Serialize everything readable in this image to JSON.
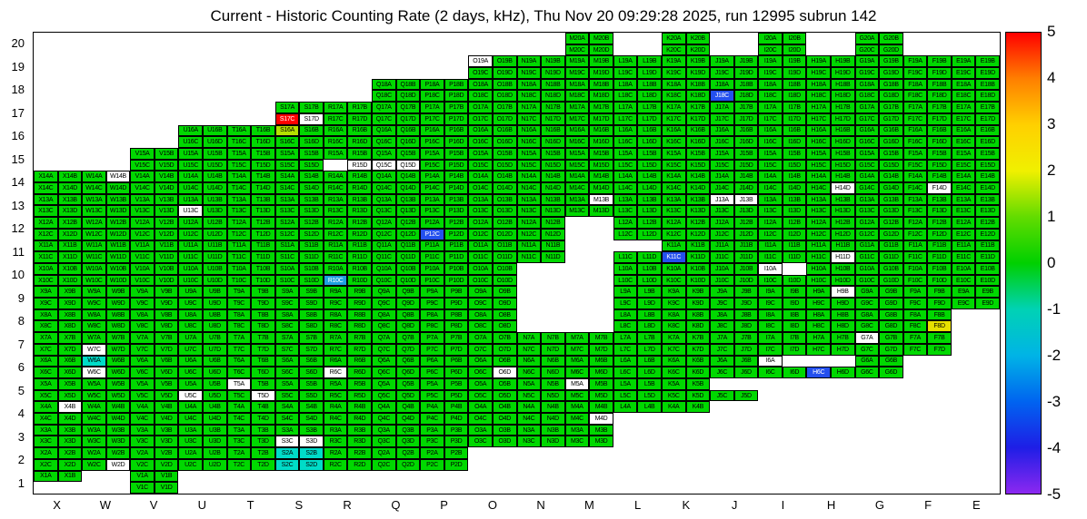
{
  "chart_data": {
    "type": "heatmap",
    "title": "Current - Historic Counting Rate (2 days, kHz), Thu Nov 20 09:29:28 2025, run 12995 subrun 142",
    "x_labels": [
      "X",
      "W",
      "V",
      "U",
      "T",
      "S",
      "R",
      "Q",
      "P",
      "O",
      "N",
      "M",
      "L",
      "K",
      "J",
      "I",
      "H",
      "G",
      "F",
      "E"
    ],
    "y_labels": [
      "20",
      "19",
      "18",
      "17",
      "16",
      "15",
      "14",
      "13",
      "12",
      "11",
      "10",
      "9",
      "8",
      "7",
      "6",
      "5",
      "4",
      "3",
      "2",
      "1"
    ],
    "sub_channels": [
      "A",
      "B",
      "C",
      "D"
    ],
    "value_scale": {
      "min": -5,
      "max": 5,
      "ticks": [
        "5",
        "4",
        "3",
        "2",
        "1",
        "0",
        "-1",
        "-2",
        "-3",
        "-4",
        "-5"
      ]
    },
    "default_color": "green",
    "colors": {
      "green": "#00d800",
      "red": "#ff0000",
      "blue": "#2450ee",
      "lightblue": "#1ea0e0",
      "cyan": "#00dcc8",
      "yellow": "#e6e000",
      "yellowgreen": "#b4e000",
      "white": "#ffffff"
    },
    "light_text_on": [
      "red",
      "blue",
      "lightblue"
    ],
    "approx_values": {
      "green": 0.5,
      "yellowgreen": 2,
      "yellow": 2.5,
      "red": 5,
      "cyan": -1,
      "lightblue": -2,
      "blue": -3,
      "white": null
    },
    "rows": [
      {
        "y": "20",
        "cols": [
          "M",
          "K",
          "I",
          "G"
        ]
      },
      {
        "y": "19",
        "cols": [
          "O",
          "N",
          "M",
          "L",
          "K",
          "J",
          "I",
          "H",
          "G",
          "F",
          "E"
        ]
      },
      {
        "y": "18",
        "cols": [
          "Q",
          "P",
          "O",
          "N",
          "M",
          "L",
          "K",
          "J",
          "I",
          "H",
          "G",
          "F",
          "E"
        ]
      },
      {
        "y": "17",
        "cols": [
          "S",
          "R",
          "Q",
          "P",
          "O",
          "N",
          "M",
          "L",
          "K",
          "J",
          "I",
          "H",
          "G",
          "F",
          "E"
        ]
      },
      {
        "y": "16",
        "cols": [
          "U",
          "T",
          "S",
          "R",
          "Q",
          "P",
          "O",
          "N",
          "M",
          "L",
          "K",
          "J",
          "I",
          "H",
          "G",
          "F",
          "E"
        ]
      },
      {
        "y": "15",
        "cols": [
          "V",
          "U",
          "T",
          "S",
          "R",
          "Q",
          "P",
          "O",
          "N",
          "M",
          "L",
          "K",
          "J",
          "I",
          "H",
          "G",
          "F",
          "E"
        ]
      },
      {
        "y": "14",
        "cols": [
          "X",
          "W",
          "V",
          "U",
          "T",
          "S",
          "R",
          "Q",
          "P",
          "O",
          "N",
          "M",
          "L",
          "K",
          "J",
          "I",
          "H",
          "G",
          "F",
          "E"
        ]
      },
      {
        "y": "13",
        "cols": [
          "X",
          "W",
          "V",
          "U",
          "T",
          "S",
          "R",
          "Q",
          "P",
          "O",
          "N",
          "M",
          "L",
          "K",
          "J",
          "I",
          "H",
          "G",
          "F",
          "E"
        ]
      },
      {
        "y": "12",
        "cols": [
          "X",
          "W",
          "V",
          "U",
          "T",
          "S",
          "R",
          "Q",
          "P",
          "O",
          "N",
          "L",
          "K",
          "J",
          "I",
          "H",
          "G",
          "F",
          "E"
        ]
      },
      {
        "y": "11",
        "cols": [
          "X",
          "W",
          "V",
          "U",
          "T",
          "S",
          "R",
          "Q",
          "P",
          "O",
          "N",
          "L",
          "K",
          "J",
          "I",
          "H",
          "G",
          "F",
          "E"
        ]
      },
      {
        "y": "10",
        "cols": [
          "X",
          "W",
          "V",
          "U",
          "T",
          "S",
          "R",
          "Q",
          "P",
          "O",
          "L",
          "K",
          "J",
          "I",
          "H",
          "G",
          "F",
          "E"
        ]
      },
      {
        "y": "9",
        "cols": [
          "X",
          "W",
          "V",
          "U",
          "T",
          "S",
          "R",
          "Q",
          "P",
          "O",
          "L",
          "K",
          "J",
          "I",
          "H",
          "G",
          "F",
          "E"
        ]
      },
      {
        "y": "8",
        "cols": [
          "X",
          "W",
          "V",
          "U",
          "T",
          "S",
          "R",
          "Q",
          "P",
          "O",
          "L",
          "K",
          "J",
          "I",
          "H",
          "G",
          "F"
        ]
      },
      {
        "y": "7",
        "cols": [
          "X",
          "W",
          "V",
          "U",
          "T",
          "S",
          "R",
          "Q",
          "P",
          "O",
          "N",
          "M",
          "L",
          "K",
          "J",
          "I",
          "H",
          "G",
          "F"
        ]
      },
      {
        "y": "6",
        "cols": [
          "X",
          "W",
          "V",
          "U",
          "T",
          "S",
          "R",
          "Q",
          "P",
          "O",
          "N",
          "M",
          "L",
          "K",
          "J",
          "I",
          "H",
          "G"
        ]
      },
      {
        "y": "5",
        "cols": [
          "X",
          "W",
          "V",
          "U",
          "T",
          "S",
          "R",
          "Q",
          "P",
          "O",
          "N",
          "M",
          "L",
          "K",
          "J"
        ]
      },
      {
        "y": "4",
        "cols": [
          "X",
          "W",
          "V",
          "U",
          "T",
          "S",
          "R",
          "Q",
          "P",
          "O",
          "N",
          "M",
          "L",
          "K"
        ]
      },
      {
        "y": "3",
        "cols": [
          "X",
          "W",
          "V",
          "U",
          "T",
          "S",
          "R",
          "Q",
          "P",
          "O",
          "N",
          "M"
        ]
      },
      {
        "y": "2",
        "cols": [
          "X",
          "W",
          "V",
          "U",
          "T",
          "S",
          "R",
          "Q",
          "P"
        ]
      },
      {
        "y": "1",
        "cols": [
          "X",
          "V"
        ]
      }
    ],
    "overrides": {
      "O19A": "white",
      "J18C": "blue",
      "S17C": "red",
      "S17D": "white",
      "S16A": "yellowgreen",
      "R15C": "none",
      "R15D": "white",
      "Q15C": "white",
      "Q15D": "white",
      "W14B": "white",
      "H14D": "white",
      "F14D": "white",
      "U13C": "white",
      "M13B": "white",
      "J13A": "white",
      "J13B": "white",
      "P12C": "blue",
      "L11A": "none",
      "L11B": "none",
      "K11C": "blue",
      "H11D": "white",
      "R10C": "lightblue",
      "I10A": "white",
      "I10B": "none",
      "H9B": "white",
      "F8D": "yellow",
      "W7C": "white",
      "G7A": "white",
      "W6A": "cyan",
      "W6C": "white",
      "R6C": "white",
      "O6D": "white",
      "I6A": "white",
      "I6B": "none",
      "H6A": "none",
      "H6B": "none",
      "H6C": "blue",
      "T5A": "white",
      "T5D": "white",
      "U5C": "white",
      "M5A": "white",
      "J5A": "none",
      "J5B": "none",
      "X4B": "white",
      "M4D": "white",
      "L4C": "none",
      "L4D": "none",
      "K4C": "none",
      "K4D": "none",
      "S3C": "white",
      "S3D": "white",
      "S2A": "cyan",
      "S2B": "cyan",
      "S2C": "cyan",
      "S2D": "cyan",
      "W2D": "white",
      "X1C": "none",
      "X1D": "none"
    },
    "colorbar_gradient": [
      "#ff0000",
      "#ff7f00",
      "#ffd000",
      "#f0f000",
      "#62dc00",
      "#00d000",
      "#00d2b4",
      "#00b4e6",
      "#0064f0",
      "#1e1ee6",
      "#8c28f0"
    ]
  }
}
